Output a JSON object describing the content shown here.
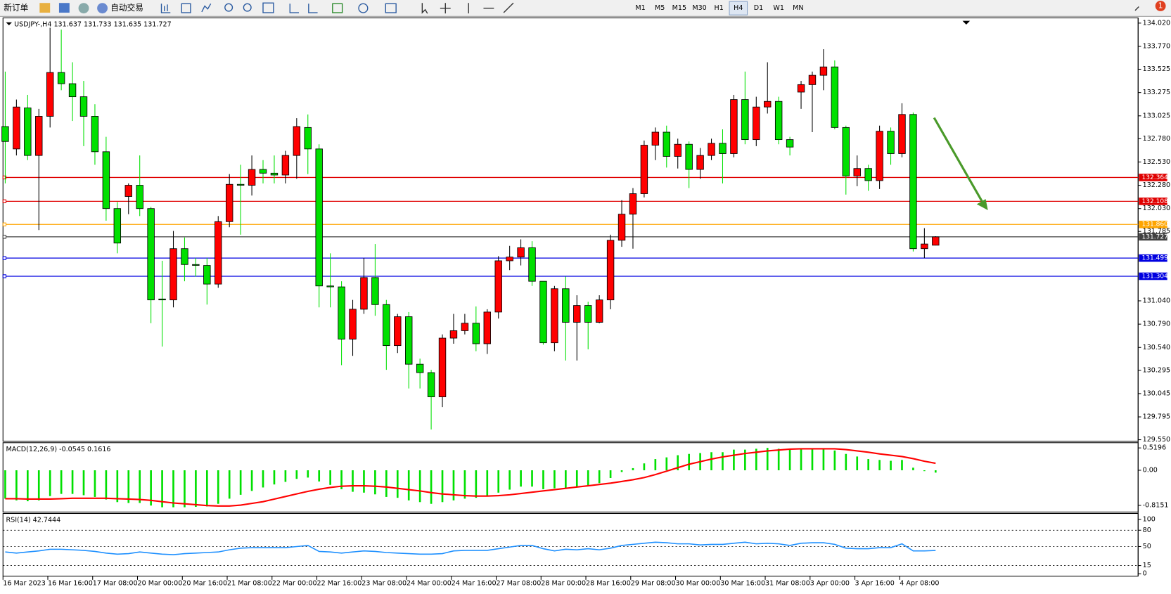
{
  "toolbar": {
    "new_order": "新订单",
    "auto_trading": "自动交易",
    "timeframes": [
      "M1",
      "M5",
      "M15",
      "M30",
      "H1",
      "H4",
      "D1",
      "W1",
      "MN"
    ],
    "active_timeframe": "H4",
    "notifications": 1
  },
  "chart_data": [
    {
      "type": "candlestick",
      "title": "USDJPY-,H4 131.637 131.733 131.635 131.727",
      "up_color": "#ff0000",
      "down_color": "#00e000",
      "categories": [
        "16 Mar 2023",
        null,
        null,
        null,
        "16 Mar 16:00",
        null,
        null,
        null,
        "17 Mar 08:00",
        null,
        null,
        null,
        "20 Mar 00:00",
        null,
        null,
        null,
        "20 Mar 16:00",
        null,
        null,
        null,
        "21 Mar 08:00",
        null,
        null,
        null,
        "22 Mar 00:00",
        null,
        null,
        null,
        "22 Mar 16:00",
        null,
        null,
        null,
        "23 Mar 08:00",
        null,
        null,
        null,
        "24 Mar 00:00",
        null,
        null,
        null,
        "24 Mar 16:00",
        null,
        null,
        null,
        "27 Mar 08:00",
        null,
        null,
        null,
        "28 Mar 00:00",
        null,
        null,
        null,
        "28 Mar 16:00",
        null,
        null,
        null,
        "29 Mar 08:00",
        null,
        null,
        null,
        "30 Mar 00:00",
        null,
        null,
        null,
        "30 Mar 16:00",
        null,
        null,
        null,
        "31 Mar 08:00",
        null,
        null,
        null,
        "3 Apr 00:00",
        null,
        null,
        null,
        "3 Apr 16:00",
        null,
        null,
        null,
        "4 Apr 08:00",
        null,
        null,
        null
      ],
      "open": [
        132.91,
        132.67,
        133.11,
        132.6,
        133.02,
        133.49,
        133.37,
        133.23,
        133.02,
        132.64,
        132.03,
        132.16,
        132.28,
        132.03,
        131.06,
        131.05,
        131.6,
        131.43,
        131.42,
        131.22,
        131.89,
        132.29,
        132.28,
        132.45,
        132.41,
        132.39,
        132.6,
        132.9,
        132.67,
        131.2,
        131.19,
        130.63,
        130.95,
        131.29,
        131.0,
        130.56,
        130.87,
        130.36,
        130.27,
        130.01,
        130.64,
        130.72,
        130.8,
        130.58,
        130.92,
        131.47,
        131.51,
        131.61,
        131.25,
        130.59,
        131.17,
        130.81,
        130.99,
        130.81,
        131.05,
        131.69,
        131.97,
        132.19,
        132.71,
        132.85,
        132.59,
        132.72,
        132.45,
        132.6,
        132.73,
        132.62,
        133.2,
        132.77,
        133.12,
        133.18,
        132.77,
        133.28,
        133.36,
        133.46,
        133.55,
        132.9,
        132.38,
        132.46,
        132.33,
        132.86,
        132.62,
        133.04,
        131.6,
        131.637
      ],
      "high": [
        133.5,
        133.2,
        133.25,
        133.1,
        133.97,
        133.95,
        133.6,
        133.4,
        133.15,
        132.8,
        132.1,
        132.3,
        132.6,
        132.05,
        131.47,
        131.79,
        131.72,
        131.5,
        131.5,
        131.95,
        132.4,
        132.5,
        132.6,
        132.55,
        132.6,
        132.65,
        133.0,
        133.04,
        132.72,
        131.55,
        131.25,
        131.05,
        131.5,
        131.65,
        131.05,
        130.9,
        130.92,
        130.42,
        130.3,
        130.68,
        130.9,
        130.9,
        130.98,
        130.95,
        131.52,
        131.63,
        131.7,
        131.68,
        131.25,
        131.2,
        131.3,
        131.1,
        131.03,
        131.1,
        131.75,
        132.12,
        132.25,
        132.76,
        132.9,
        132.92,
        132.78,
        132.75,
        132.68,
        132.78,
        132.88,
        133.25,
        133.5,
        133.23,
        133.6,
        133.23,
        132.8,
        133.4,
        133.5,
        133.74,
        133.62,
        132.92,
        132.6,
        132.5,
        132.92,
        132.9,
        133.16,
        133.06,
        131.82,
        131.733
      ],
      "low": [
        132.3,
        132.6,
        132.55,
        131.8,
        132.9,
        133.3,
        132.97,
        132.7,
        132.5,
        131.9,
        131.55,
        131.97,
        131.95,
        130.8,
        130.55,
        130.97,
        131.25,
        131.3,
        131.0,
        131.18,
        131.83,
        131.75,
        132.17,
        132.3,
        132.3,
        132.3,
        132.35,
        132.4,
        130.97,
        130.97,
        130.35,
        130.45,
        130.9,
        130.88,
        130.3,
        130.48,
        130.1,
        130.1,
        129.66,
        129.9,
        130.58,
        130.68,
        130.5,
        130.47,
        130.85,
        131.37,
        131.42,
        131.2,
        130.57,
        130.5,
        130.4,
        130.4,
        130.52,
        130.8,
        130.95,
        131.62,
        131.6,
        132.15,
        132.55,
        132.47,
        132.46,
        132.25,
        132.35,
        132.55,
        132.3,
        132.58,
        132.72,
        132.7,
        133.05,
        132.72,
        132.6,
        133.1,
        132.85,
        133.3,
        132.88,
        132.18,
        132.27,
        132.22,
        132.24,
        132.5,
        132.58,
        131.57,
        131.5,
        131.635
      ],
      "close": [
        132.75,
        133.12,
        132.6,
        133.02,
        133.49,
        133.37,
        133.23,
        133.02,
        132.64,
        132.03,
        131.66,
        132.28,
        132.03,
        131.05,
        131.05,
        131.6,
        131.43,
        131.42,
        131.22,
        131.89,
        132.29,
        132.28,
        132.45,
        132.41,
        132.39,
        132.6,
        132.91,
        132.67,
        131.2,
        131.19,
        130.63,
        130.95,
        131.29,
        131.0,
        130.56,
        130.87,
        130.36,
        130.27,
        130.01,
        130.64,
        130.72,
        130.8,
        130.58,
        130.92,
        131.47,
        131.51,
        131.61,
        131.25,
        130.59,
        131.17,
        130.81,
        130.99,
        130.81,
        131.05,
        131.69,
        131.97,
        132.19,
        132.71,
        132.85,
        132.59,
        132.72,
        132.45,
        132.6,
        132.73,
        132.62,
        133.2,
        132.77,
        133.12,
        133.18,
        132.77,
        132.69,
        133.36,
        133.46,
        133.55,
        132.9,
        132.38,
        132.46,
        132.33,
        132.86,
        132.62,
        133.04,
        131.6,
        131.65,
        131.727
      ],
      "ylim": [
        129.534,
        134.06
      ],
      "yticks": [
        {
          "value": 134.02,
          "label": "134.020"
        },
        {
          "value": 133.77,
          "label": "133.770"
        },
        133.525,
        133.275,
        133.025,
        {
          "value": 132.78,
          "label": "132.780"
        },
        {
          "value": 132.53,
          "label": "132.530"
        },
        {
          "value": 132.28,
          "label": "132.280"
        },
        {
          "value": 132.03,
          "label": "132.030"
        },
        131.785,
        {
          "value": 131.04,
          "label": "131.040"
        },
        {
          "value": 130.79,
          "label": "130.790"
        },
        {
          "value": 130.54,
          "label": "130.540"
        },
        130.295,
        130.045,
        129.795,
        {
          "value": 129.55,
          "label": "129.550"
        }
      ],
      "levels": [
        {
          "value": 132.364,
          "color": "#e00000"
        },
        {
          "value": 132.108,
          "color": "#e00000"
        },
        {
          "value": 131.86,
          "label": "131.860",
          "color": "#ffa500"
        },
        {
          "value": 131.727,
          "color": "#404040"
        },
        {
          "value": 131.499,
          "color": "#0000e0"
        },
        {
          "value": 131.304,
          "color": "#0000e0"
        }
      ]
    },
    {
      "type": "macd",
      "title": "MACD(12,26,9) -0.0545 0.1616",
      "series": [
        {
          "type": "histogram",
          "color": "#00e000",
          "values": [
            -0.66,
            -0.7,
            -0.72,
            -0.7,
            -0.6,
            -0.55,
            -0.55,
            -0.58,
            -0.62,
            -0.68,
            -0.74,
            -0.76,
            -0.76,
            -0.82,
            -0.86,
            -0.86,
            -0.86,
            -0.85,
            -0.84,
            -0.78,
            -0.66,
            -0.57,
            -0.48,
            -0.4,
            -0.33,
            -0.27,
            -0.2,
            -0.17,
            -0.26,
            -0.34,
            -0.44,
            -0.5,
            -0.52,
            -0.56,
            -0.62,
            -0.64,
            -0.7,
            -0.74,
            -0.78,
            -0.74,
            -0.7,
            -0.66,
            -0.64,
            -0.6,
            -0.52,
            -0.45,
            -0.38,
            -0.38,
            -0.44,
            -0.42,
            -0.42,
            -0.38,
            -0.35,
            -0.3,
            -0.18,
            -0.04,
            0.05,
            0.16,
            0.26,
            0.3,
            0.35,
            0.38,
            0.4,
            0.42,
            0.42,
            0.48,
            0.48,
            0.5,
            0.52,
            0.5,
            0.48,
            0.49,
            0.5,
            0.5,
            0.46,
            0.38,
            0.32,
            0.26,
            0.24,
            0.22,
            0.24,
            0.06,
            -0.02,
            -0.0545
          ]
        },
        {
          "type": "line",
          "color": "#ff0000",
          "values": [
            -0.66,
            -0.66,
            -0.67,
            -0.67,
            -0.67,
            -0.66,
            -0.65,
            -0.65,
            -0.65,
            -0.65,
            -0.66,
            -0.67,
            -0.68,
            -0.7,
            -0.73,
            -0.76,
            -0.78,
            -0.8,
            -0.82,
            -0.83,
            -0.83,
            -0.81,
            -0.77,
            -0.73,
            -0.67,
            -0.61,
            -0.55,
            -0.49,
            -0.44,
            -0.4,
            -0.37,
            -0.36,
            -0.36,
            -0.37,
            -0.39,
            -0.42,
            -0.45,
            -0.48,
            -0.52,
            -0.55,
            -0.57,
            -0.59,
            -0.6,
            -0.6,
            -0.59,
            -0.57,
            -0.54,
            -0.51,
            -0.48,
            -0.45,
            -0.42,
            -0.39,
            -0.36,
            -0.33,
            -0.3,
            -0.26,
            -0.22,
            -0.17,
            -0.1,
            -0.02,
            0.06,
            0.14,
            0.2,
            0.26,
            0.31,
            0.35,
            0.39,
            0.42,
            0.45,
            0.47,
            0.49,
            0.5,
            0.5,
            0.5,
            0.5,
            0.48,
            0.45,
            0.42,
            0.38,
            0.35,
            0.32,
            0.27,
            0.21,
            0.1616
          ]
        }
      ],
      "ylim": [
        -0.953,
        0.606
      ],
      "yticks": [
        0.5196,
        {
          "value": 0,
          "label": "0.00"
        },
        -0.8151
      ]
    },
    {
      "type": "line",
      "title": "RSI(14) 42.7444",
      "color": "#1e90ff",
      "values": [
        40,
        38,
        40,
        42,
        45,
        45,
        44,
        43,
        41,
        38,
        36,
        37,
        40,
        38,
        36,
        35,
        37,
        38,
        39,
        40,
        44,
        47,
        48,
        48,
        48,
        48,
        50,
        52,
        41,
        40,
        38,
        40,
        42,
        41,
        39,
        38,
        37,
        36,
        36,
        37,
        42,
        43,
        43,
        43,
        46,
        49,
        52,
        52,
        46,
        42,
        45,
        44,
        46,
        44,
        47,
        52,
        54,
        56,
        58,
        57,
        55,
        55,
        53,
        54,
        54,
        56,
        58,
        55,
        56,
        55,
        52,
        56,
        57,
        57,
        54,
        47,
        46,
        46,
        48,
        48,
        55,
        42,
        42,
        42.7444
      ],
      "ylim": [
        -3,
        108
      ],
      "yticks": [
        100,
        80,
        50,
        15,
        0
      ],
      "grid": [
        80,
        50,
        15
      ]
    }
  ]
}
